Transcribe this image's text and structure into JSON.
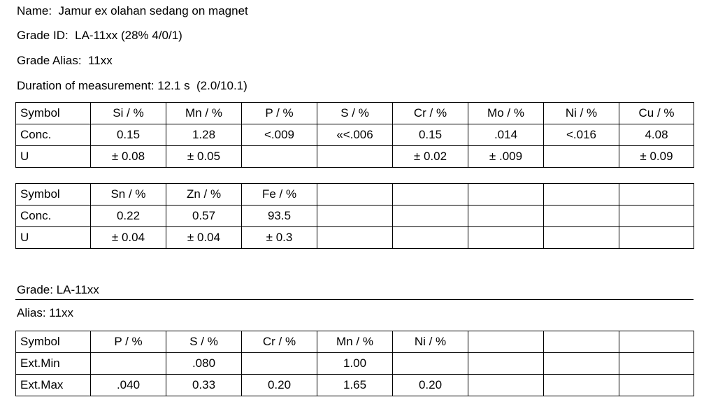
{
  "header": {
    "name_line": "Name:  Jamur ex olahan sedang on magnet",
    "grade_id_line": "Grade ID:  LA-11xx (28% 4/0/1)",
    "grade_alias_line": "Grade Alias:  11xx",
    "duration_line": "Duration of measurement: 12.1 s  (2.0/10.1)"
  },
  "results_table_1": {
    "header": [
      "Symbol",
      "Si / %",
      "Mn / %",
      "P / %",
      "S / %",
      "Cr / %",
      "Mo / %",
      "Ni / %",
      "Cu / %"
    ],
    "conc": [
      "Conc.",
      "0.15",
      "1.28",
      "<.009",
      "«<.006",
      "0.15",
      ".014",
      "<.016",
      "4.08"
    ],
    "u": [
      "U",
      "± 0.08",
      "± 0.05",
      "",
      "",
      "± 0.02",
      "± .009",
      "",
      "± 0.09"
    ]
  },
  "results_table_2": {
    "header": [
      "Symbol",
      "Sn / %",
      "Zn / %",
      "Fe / %",
      "",
      "",
      "",
      "",
      ""
    ],
    "conc": [
      "Conc.",
      "0.22",
      "0.57",
      "93.5",
      "",
      "",
      "",
      "",
      ""
    ],
    "u": [
      "U",
      "± 0.04",
      "± 0.04",
      "± 0.3",
      "",
      "",
      "",
      "",
      ""
    ]
  },
  "grade_section": {
    "grade_line": "Grade: LA-11xx",
    "alias_line": "Alias: 11xx",
    "table": {
      "header": [
        "Symbol",
        "P / %",
        "S / %",
        "Cr / %",
        "Mn / %",
        "Ni / %",
        "",
        "",
        ""
      ],
      "ext_min": [
        "Ext.Min",
        "",
        ".080",
        "",
        "1.00",
        "",
        "",
        "",
        ""
      ],
      "ext_max": [
        "Ext.Max",
        ".040",
        "0.33",
        "0.20",
        "1.65",
        "0.20",
        "",
        "",
        ""
      ]
    }
  }
}
